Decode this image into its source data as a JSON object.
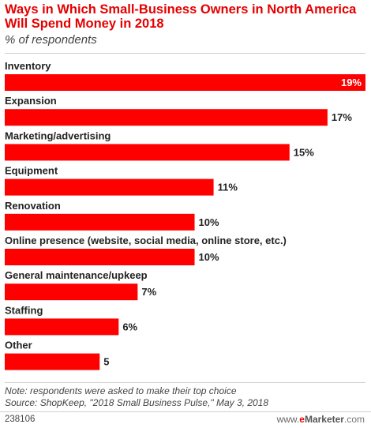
{
  "header": {
    "title": "Ways in Which Small-Business Owners in North America Will Spend Money in 2018",
    "subtitle": "% of respondents"
  },
  "chart_data": {
    "type": "bar",
    "orientation": "horizontal",
    "title": "Ways in Which Small-Business Owners in North America Will Spend Money in 2018",
    "subtitle": "% of respondents",
    "categories": [
      "Inventory",
      "Expansion",
      "Marketing/advertising",
      "Equipment",
      "Renovation",
      "Online presence (website, social media, online store, etc.)",
      "General maintenance/upkeep",
      "Staffing",
      "Other"
    ],
    "values": [
      19,
      17,
      15,
      11,
      10,
      10,
      7,
      6,
      5
    ],
    "value_labels": [
      "19%",
      "17%",
      "15%",
      "11%",
      "10%",
      "10%",
      "7%",
      "6%",
      "5"
    ],
    "xlim": [
      0,
      19
    ],
    "grid": false,
    "legend": "none",
    "bar_color": "#ff0000"
  },
  "footer": {
    "note": "Note: respondents were asked to make their top choice",
    "source": "Source: ShopKeep, \"2018 Small Business Pulse,\" May 3, 2018",
    "chart_id": "238106",
    "brand_prefix": "www.",
    "brand_e": "e",
    "brand_main": "Marketer",
    "brand_suffix": ".com"
  }
}
